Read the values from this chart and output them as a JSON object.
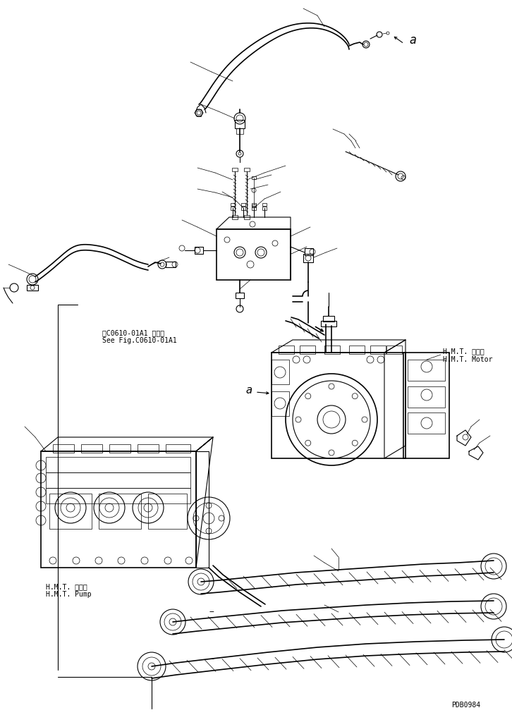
{
  "bg_color": "#ffffff",
  "line_color": "#000000",
  "fig_width": 7.26,
  "fig_height": 10.14,
  "dpi": 100,
  "watermark": "PDB0984",
  "label_a": "a",
  "label_hmt_motor_jp": "H.M.T. モータ",
  "label_hmt_motor_en": "H.M.T. Motor",
  "label_hmt_pump_jp": "H.M.T. ポンプ",
  "label_hmt_pump_en": "H.M.T. Pump",
  "label_see_fig_jp": "第C0610-01A1 図参照",
  "label_see_fig_en": "See Fig.C0610-01A1",
  "font_size_small": 7,
  "font_size_label_a": 11,
  "font_size_watermark": 7,
  "font_family": "monospace"
}
